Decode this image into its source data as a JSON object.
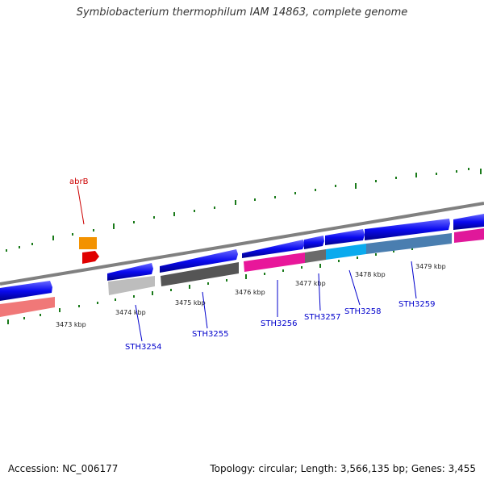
{
  "title": "Symbiobacterium thermophilum IAM 14863, complete genome",
  "footer": {
    "accession": "Accession: NC_006177",
    "topology": "Topology: circular; Length: 3,566,135 bp; Genes: 3,455"
  },
  "kbp_ticks": [
    "3473 kbp",
    "3474 kbp",
    "3475 kbp",
    "3476 kbp",
    "3477 kbp",
    "3478 kbp",
    "3479 kbp"
  ],
  "gene_labels": [
    "STH3254",
    "STH3255",
    "STH3256",
    "STH3257",
    "STH3258",
    "STH3259"
  ],
  "feature_label": "abrB",
  "colors": {
    "cds_arrow": "#0a0af0",
    "axis": "#808080",
    "gc_dots": "#1a7a1a",
    "label": "#0000cc",
    "feature": "#cc0000"
  }
}
